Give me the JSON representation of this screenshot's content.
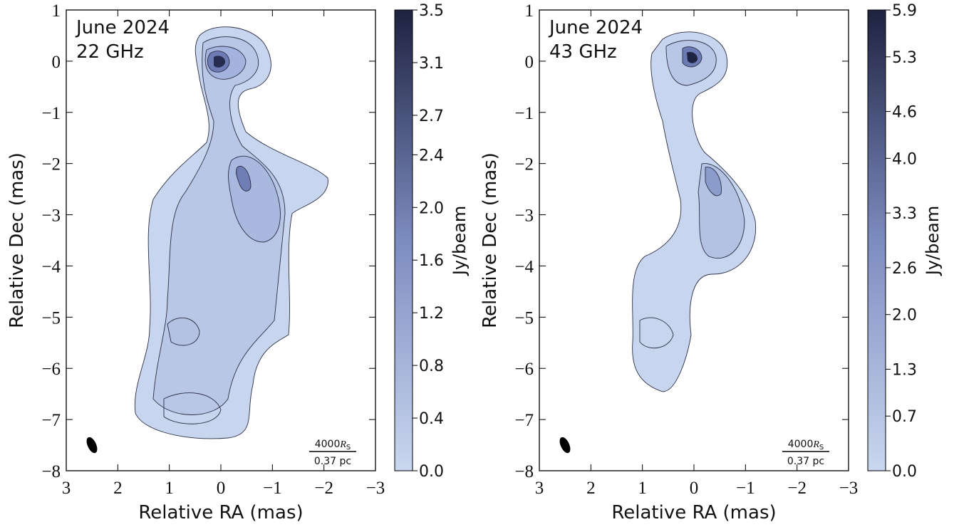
{
  "chart_data": [
    {
      "type": "image",
      "epoch": "June 2024",
      "frequency": "22 GHz",
      "xlabel": "Relative RA (mas)",
      "ylabel": "Relative Dec (mas)",
      "xlim": [
        3,
        -3
      ],
      "ylim": [
        -8,
        1
      ],
      "xticks": [
        3,
        2,
        1,
        0,
        {
          "value": -1,
          "label": "−1"
        },
        {
          "value": -2,
          "label": "−2"
        },
        {
          "value": -3,
          "label": "−3"
        }
      ],
      "yticks": [
        1,
        0,
        {
          "value": -1,
          "label": "−1"
        },
        {
          "value": -2,
          "label": "−2"
        },
        {
          "value": -3,
          "label": "−3"
        },
        {
          "value": -4,
          "label": "−4"
        },
        {
          "value": -5,
          "label": "−5"
        },
        {
          "value": -6,
          "label": "−6"
        },
        {
          "value": -7,
          "label": "−7"
        },
        {
          "value": -8,
          "label": "−8"
        }
      ],
      "colorbar": {
        "label": "Jy/beam",
        "clim": [
          0,
          3.5
        ],
        "colors": [
          "#c9d7ef",
          "#7d8cc0",
          "#1e2240"
        ],
        "ticks": [
          {
            "value": 0,
            "label": "0.0"
          },
          0.4,
          0.8,
          1.2,
          1.6,
          {
            "value": 2,
            "label": "2.0"
          },
          2.4,
          2.7,
          3.1,
          3.5
        ]
      },
      "scale_bar": {
        "length": "4000",
        "symbol": "R",
        "subscript": "S",
        "size": "0.37 pc"
      }
    },
    {
      "type": "image",
      "epoch": "June 2024",
      "frequency": "43 GHz",
      "xlabel": "Relative RA (mas)",
      "ylabel": "Relative Dec (mas)",
      "xlim": [
        3,
        -3
      ],
      "ylim": [
        -8,
        1
      ],
      "xticks": [
        3,
        2,
        1,
        0,
        {
          "value": -1,
          "label": "−1"
        },
        {
          "value": -2,
          "label": "−2"
        },
        {
          "value": -3,
          "label": "−3"
        }
      ],
      "yticks": [
        1,
        0,
        {
          "value": -1,
          "label": "−1"
        },
        {
          "value": -2,
          "label": "−2"
        },
        {
          "value": -3,
          "label": "−3"
        },
        {
          "value": -4,
          "label": "−4"
        },
        {
          "value": -5,
          "label": "−5"
        },
        {
          "value": -6,
          "label": "−6"
        },
        {
          "value": -7,
          "label": "−7"
        },
        {
          "value": -8,
          "label": "−8"
        }
      ],
      "colorbar": {
        "label": "Jy/beam",
        "clim": [
          0,
          5.9
        ],
        "colors": [
          "#c9d7ef",
          "#7d8cc0",
          "#1e2240"
        ],
        "ticks": [
          {
            "value": 0,
            "label": "0.0"
          },
          0.7,
          1.3,
          {
            "value": 2,
            "label": "2.0"
          },
          2.6,
          3.3,
          {
            "value": 4,
            "label": "4.0"
          },
          4.6,
          5.3,
          5.9
        ]
      },
      "scale_bar": {
        "length": "4000",
        "symbol": "R",
        "subscript": "S",
        "size": "0.37 pc"
      }
    }
  ]
}
